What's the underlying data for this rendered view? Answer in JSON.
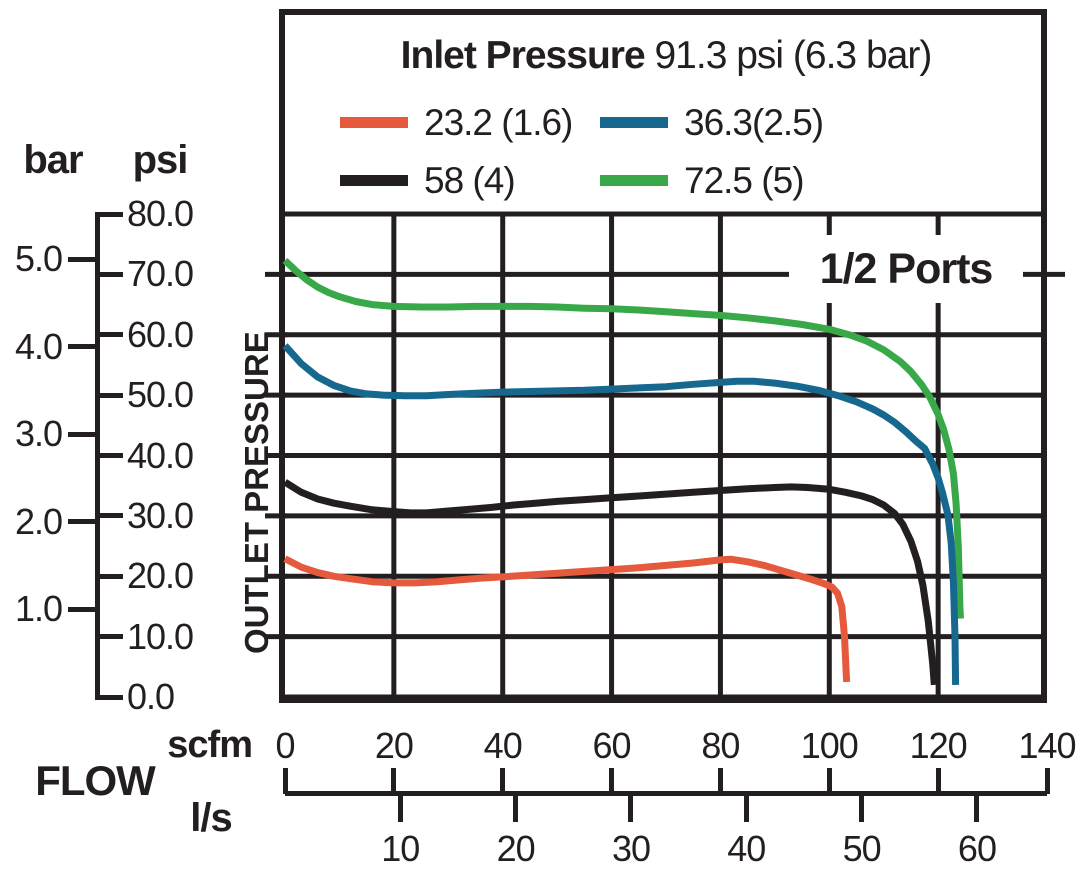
{
  "chart_data": {
    "type": "line",
    "title_bold": "Inlet Pressure",
    "title_value": "91.3 psi (6.3 bar)",
    "annotation": "1/2 Ports",
    "grid": true,
    "legend_position": "top-inside",
    "x_axis": {
      "label": "FLOW",
      "primary_unit": "scfm",
      "secondary_unit": "l/s",
      "scfm_range": [
        0,
        140
      ],
      "scfm_ticks": [
        "0",
        "20",
        "40",
        "60",
        "80",
        "100",
        "120",
        "140"
      ],
      "scfm_tick_values": [
        0,
        20,
        40,
        60,
        80,
        100,
        120,
        140
      ],
      "ls_ticks": [
        "10",
        "20",
        "30",
        "40",
        "50",
        "60"
      ],
      "ls_tick_values": [
        10,
        20,
        30,
        40,
        50,
        60
      ],
      "ls_to_scfm_factor": 2.11888
    },
    "y_axis": {
      "label": "OUTLET PRESSURE",
      "primary_unit": "psi",
      "secondary_unit": "bar",
      "psi_range": [
        0,
        80
      ],
      "psi_ticks": [
        "80.0",
        "70.0",
        "60.0",
        "50.0",
        "40.0",
        "30.0",
        "20.0",
        "10.0",
        "0.0"
      ],
      "psi_tick_values": [
        80,
        70,
        60,
        50,
        40,
        30,
        20,
        10,
        0
      ],
      "bar_ticks": [
        "5.0",
        "4.0",
        "3.0",
        "2.0",
        "1.0"
      ],
      "bar_tick_values": [
        5,
        4,
        3,
        2,
        1
      ],
      "bar_to_psi_factor": 14.5
    },
    "grid_color": "#231F20",
    "series": [
      {
        "name": "23.2 (1.6)",
        "color": "#E55A3C",
        "points": [
          [
            0,
            22.9
          ],
          [
            3,
            21.5
          ],
          [
            6,
            20.6
          ],
          [
            9,
            20.0
          ],
          [
            12,
            19.6
          ],
          [
            16,
            19.1
          ],
          [
            20,
            18.9
          ],
          [
            24,
            18.9
          ],
          [
            28,
            19.1
          ],
          [
            32,
            19.4
          ],
          [
            36,
            19.7
          ],
          [
            40,
            19.9
          ],
          [
            45,
            20.2
          ],
          [
            50,
            20.5
          ],
          [
            55,
            20.8
          ],
          [
            60,
            21.1
          ],
          [
            65,
            21.4
          ],
          [
            70,
            21.8
          ],
          [
            75,
            22.2
          ],
          [
            80,
            22.7
          ],
          [
            82,
            22.8
          ],
          [
            85,
            22.4
          ],
          [
            88,
            21.8
          ],
          [
            91,
            21.0
          ],
          [
            94,
            20.2
          ],
          [
            97,
            19.4
          ],
          [
            99,
            18.8
          ],
          [
            100.5,
            18.2
          ],
          [
            101.5,
            17.2
          ],
          [
            102.3,
            15.0
          ],
          [
            102.8,
            10.0
          ],
          [
            103.1,
            4.0
          ],
          [
            103.2,
            2.5
          ]
        ]
      },
      {
        "name": "36.3(2.5)",
        "color": "#17688F",
        "points": [
          [
            0,
            58.2
          ],
          [
            3,
            55.2
          ],
          [
            6,
            53.0
          ],
          [
            9,
            51.6
          ],
          [
            12,
            50.7
          ],
          [
            15,
            50.2
          ],
          [
            18,
            50.0
          ],
          [
            22,
            49.9
          ],
          [
            26,
            49.9
          ],
          [
            30,
            50.1
          ],
          [
            35,
            50.3
          ],
          [
            40,
            50.5
          ],
          [
            45,
            50.6
          ],
          [
            50,
            50.7
          ],
          [
            55,
            50.8
          ],
          [
            60,
            51.0
          ],
          [
            65,
            51.2
          ],
          [
            70,
            51.4
          ],
          [
            75,
            51.8
          ],
          [
            80,
            52.1
          ],
          [
            83,
            52.3
          ],
          [
            86,
            52.3
          ],
          [
            90,
            52.0
          ],
          [
            94,
            51.5
          ],
          [
            98,
            50.8
          ],
          [
            102,
            49.8
          ],
          [
            105,
            48.9
          ],
          [
            108,
            47.7
          ],
          [
            110,
            46.7
          ],
          [
            112,
            45.5
          ],
          [
            114,
            44.0
          ],
          [
            116,
            42.3
          ],
          [
            117.5,
            41.2
          ],
          [
            119,
            38.6
          ],
          [
            120,
            36.3
          ],
          [
            120.8,
            33.8
          ],
          [
            121.8,
            30.2
          ],
          [
            122.4,
            25.5
          ],
          [
            122.8,
            19.0
          ],
          [
            123.1,
            10.0
          ],
          [
            123.2,
            2.0
          ]
        ]
      },
      {
        "name": "58 (4)",
        "color": "#231F20",
        "points": [
          [
            0,
            35.6
          ],
          [
            3,
            33.9
          ],
          [
            6,
            32.8
          ],
          [
            9,
            32.1
          ],
          [
            12,
            31.6
          ],
          [
            16,
            31.0
          ],
          [
            20,
            30.7
          ],
          [
            23,
            30.5
          ],
          [
            26,
            30.5
          ],
          [
            30,
            30.8
          ],
          [
            34,
            31.1
          ],
          [
            38,
            31.4
          ],
          [
            42,
            31.8
          ],
          [
            46,
            32.1
          ],
          [
            50,
            32.4
          ],
          [
            55,
            32.7
          ],
          [
            60,
            33.0
          ],
          [
            65,
            33.3
          ],
          [
            70,
            33.6
          ],
          [
            75,
            33.9
          ],
          [
            80,
            34.2
          ],
          [
            85,
            34.5
          ],
          [
            90,
            34.7
          ],
          [
            93,
            34.8
          ],
          [
            96,
            34.7
          ],
          [
            100,
            34.4
          ],
          [
            103,
            33.9
          ],
          [
            106,
            33.3
          ],
          [
            108,
            32.7
          ],
          [
            110,
            31.8
          ],
          [
            112,
            30.4
          ],
          [
            113.5,
            28.6
          ],
          [
            115,
            25.8
          ],
          [
            116.2,
            22.5
          ],
          [
            117.2,
            18.5
          ],
          [
            118.2,
            12.5
          ],
          [
            119,
            5.5
          ],
          [
            119.3,
            2.0
          ]
        ]
      },
      {
        "name": "72.5 (5)",
        "color": "#39A849",
        "points": [
          [
            0,
            72.3
          ],
          [
            2,
            70.6
          ],
          [
            4,
            69.1
          ],
          [
            6,
            67.9
          ],
          [
            8,
            67.0
          ],
          [
            10,
            66.3
          ],
          [
            13,
            65.5
          ],
          [
            16,
            65.0
          ],
          [
            20,
            64.7
          ],
          [
            25,
            64.6
          ],
          [
            30,
            64.6
          ],
          [
            35,
            64.7
          ],
          [
            40,
            64.7
          ],
          [
            45,
            64.7
          ],
          [
            50,
            64.6
          ],
          [
            55,
            64.4
          ],
          [
            60,
            64.3
          ],
          [
            65,
            64.1
          ],
          [
            70,
            63.8
          ],
          [
            75,
            63.5
          ],
          [
            80,
            63.2
          ],
          [
            85,
            62.8
          ],
          [
            90,
            62.3
          ],
          [
            95,
            61.7
          ],
          [
            100,
            60.9
          ],
          [
            104,
            59.9
          ],
          [
            107,
            58.9
          ],
          [
            110,
            57.5
          ],
          [
            113,
            55.6
          ],
          [
            115,
            53.9
          ],
          [
            117,
            51.7
          ],
          [
            118.5,
            49.6
          ],
          [
            120,
            46.8
          ],
          [
            121,
            44.3
          ],
          [
            122,
            41.0
          ],
          [
            122.8,
            37.0
          ],
          [
            123.3,
            32.0
          ],
          [
            123.7,
            25.0
          ],
          [
            124,
            15.0
          ],
          [
            124.1,
            13.0
          ]
        ]
      }
    ]
  }
}
